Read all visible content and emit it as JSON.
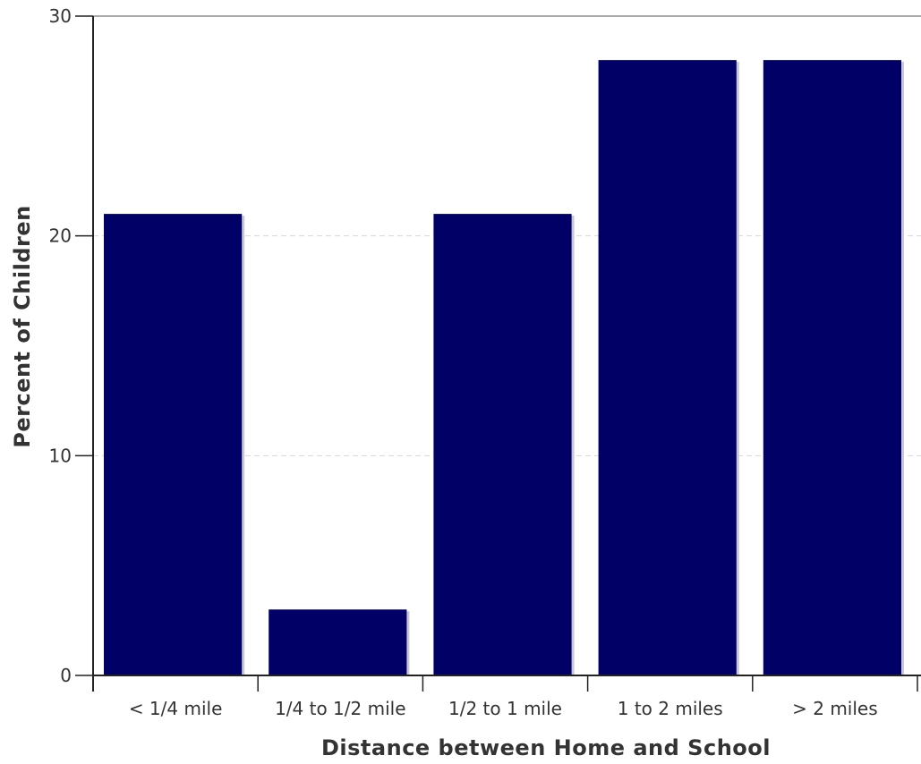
{
  "chart_data": {
    "type": "bar",
    "title": "",
    "xlabel": "Distance between Home and School",
    "ylabel": "Percent of Children",
    "categories": [
      "< 1/4 mile",
      "1/4 to 1/2 mile",
      "1/2 to 1 mile",
      "1 to 2 miles",
      "> 2 miles"
    ],
    "values": [
      21,
      3,
      21,
      28,
      28
    ],
    "ylim": [
      0,
      30
    ],
    "yticks": [
      0,
      10,
      20,
      30
    ],
    "grid": true,
    "colors": {
      "bar": "#000066",
      "bar_shadow": "#c8c8d8",
      "grid": "#d8d8d8",
      "axis": "#222222"
    }
  }
}
